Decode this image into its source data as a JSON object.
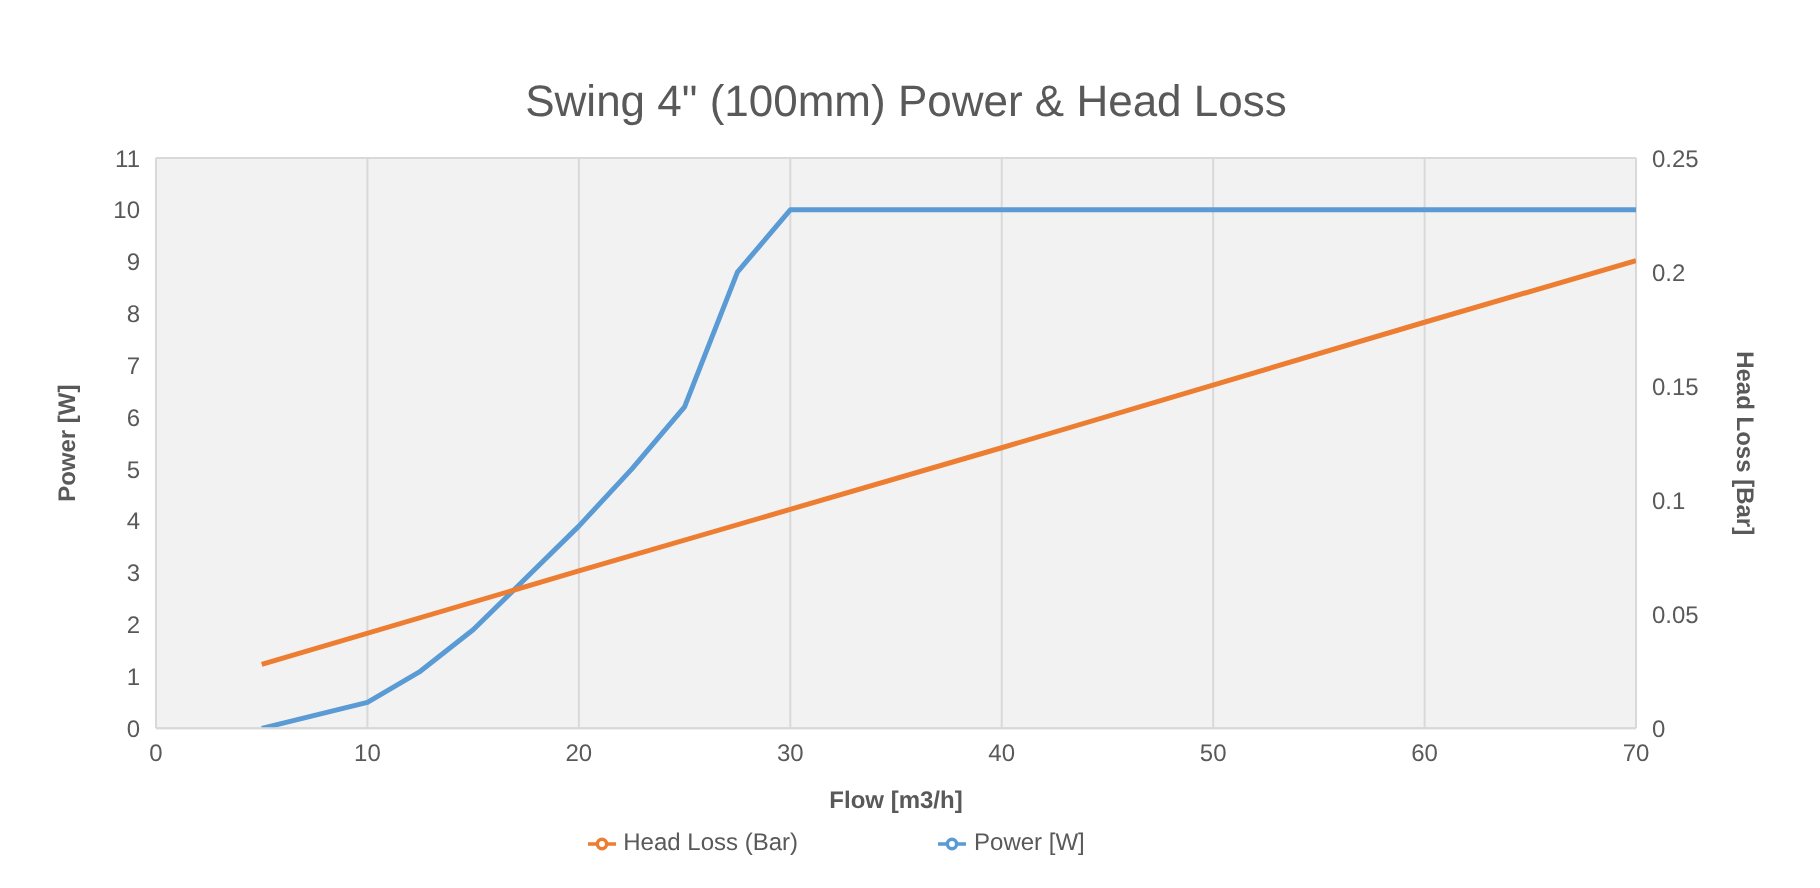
{
  "chart_data": {
    "type": "line",
    "title": "Swing 4\" (100mm) Power & Head Loss",
    "xlabel": "Flow [m3/h]",
    "ylabel": "Power [W]",
    "y2label": "Head Loss [Bar]",
    "xlim": [
      0,
      70
    ],
    "xticks": [
      0,
      10,
      20,
      30,
      40,
      50,
      60,
      70
    ],
    "ylim": [
      0,
      11
    ],
    "yticks": [
      0,
      1,
      2,
      3,
      4,
      5,
      6,
      7,
      8,
      9,
      10,
      11
    ],
    "y2lim": [
      0,
      0.25
    ],
    "y2ticks": [
      0,
      0.05,
      0.1,
      0.15,
      0.2,
      0.25
    ],
    "grid": true,
    "legend": "bottom",
    "marker": "none",
    "line_style": "solid",
    "series": [
      {
        "name": "Power [W]",
        "color": "#5b9bd5",
        "x": [
          5,
          7.5,
          10,
          12.5,
          15,
          17.5,
          20,
          22.5,
          25,
          27.5,
          30,
          70
        ],
        "values": [
          0,
          0.25,
          0.5,
          1.1,
          1.9,
          2.9,
          3.9,
          5.0,
          6.2,
          8.8,
          10,
          10
        ]
      },
      {
        "name": "Head Loss (Bar)",
        "color": "#ed7d31",
        "axis": "y2",
        "x": [
          5,
          20,
          40,
          60,
          70
        ],
        "values": [
          0.028,
          0.069,
          0.123,
          0.178,
          0.205
        ]
      }
    ]
  }
}
